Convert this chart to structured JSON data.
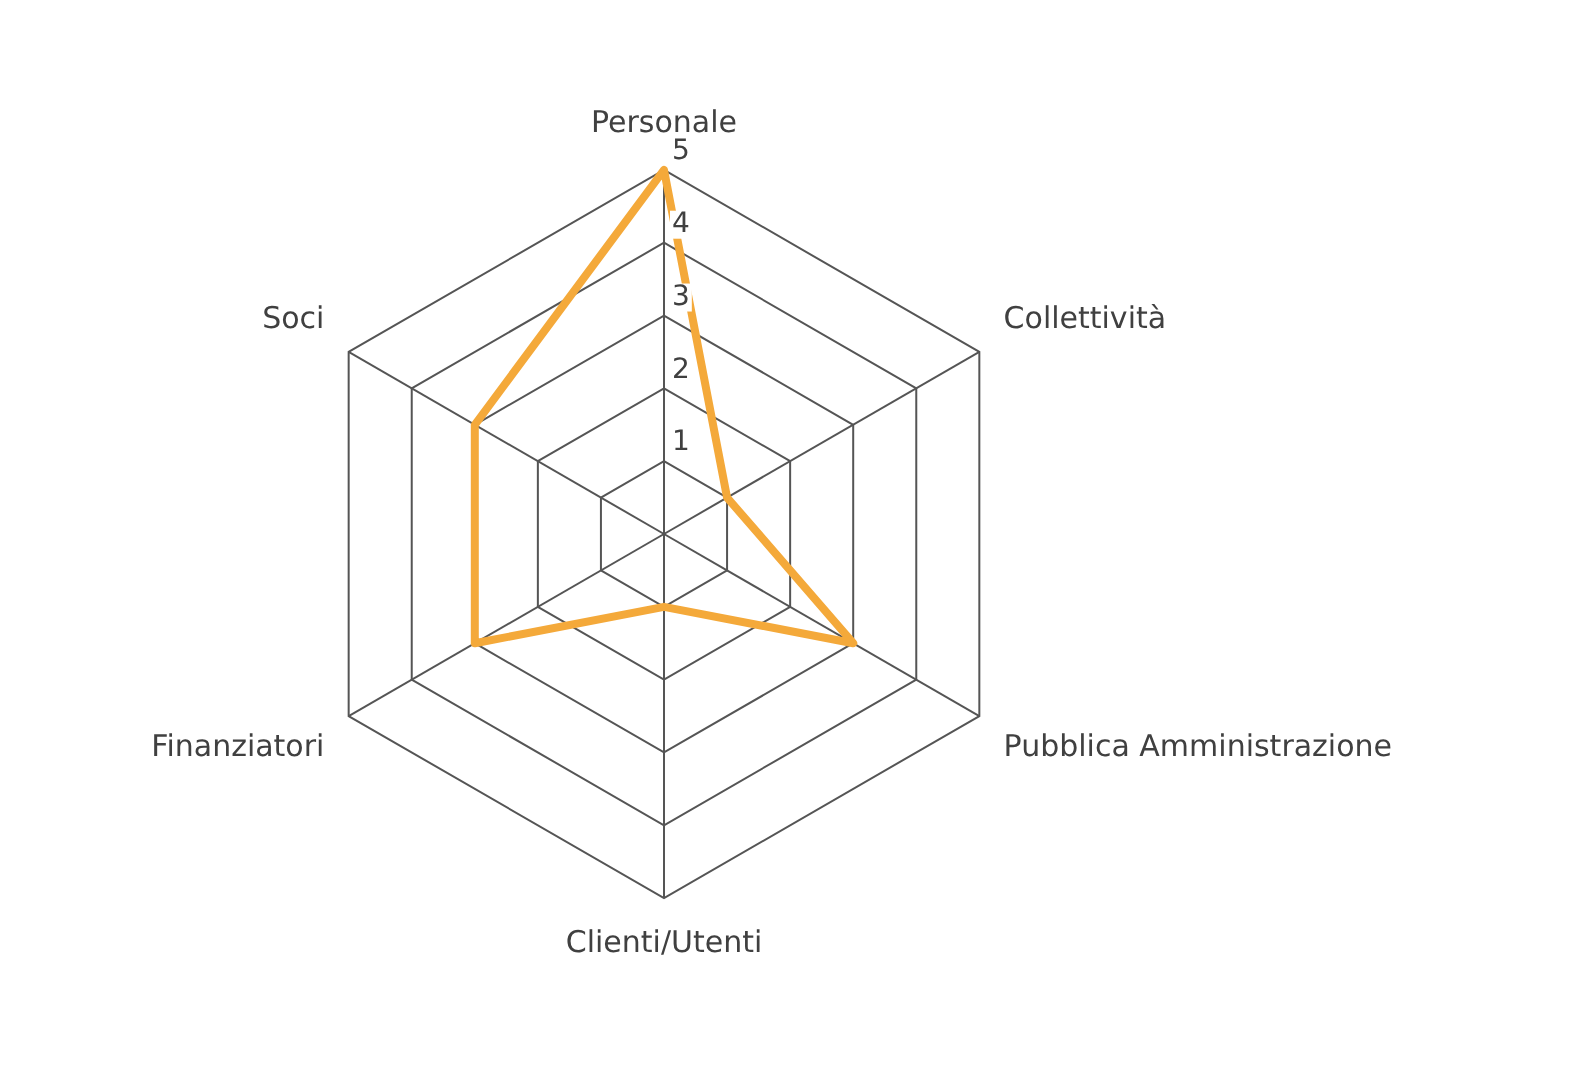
{
  "chart_data": {
    "type": "radar",
    "categories": [
      "Personale",
      "Collettività",
      "Pubblica Amministrazione",
      "Clienti/Utenti",
      "Finanziatori",
      "Soci"
    ],
    "series": [
      {
        "color": "#f4a93a",
        "values": [
          5,
          1,
          3,
          1,
          3,
          3
        ]
      }
    ],
    "ylim": [
      0,
      5
    ],
    "yticks": [
      1,
      2,
      3,
      4,
      5
    ],
    "grid": true,
    "legend": false,
    "marker": "none"
  }
}
